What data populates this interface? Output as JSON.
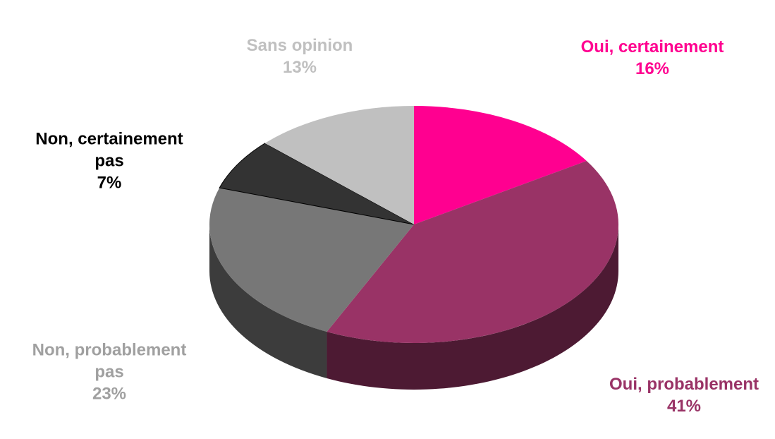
{
  "chart_data": {
    "type": "pie3d",
    "categories": [
      "Oui, certainement",
      "Oui, probablement",
      "Non, probablement pas",
      "Non, certainement pas",
      "Sans opinion"
    ],
    "values": [
      16,
      41,
      23,
      7,
      13
    ],
    "value_labels": [
      "16%",
      "41%",
      "23%",
      "7%",
      "13%"
    ],
    "colors": [
      "#ff0090",
      "#993366",
      "#777777",
      "#333333",
      "#c0c0c0"
    ],
    "label_colors": [
      "#ff0090",
      "#993366",
      "#a0a0a0",
      "#000000",
      "#c0c0c0"
    ]
  }
}
